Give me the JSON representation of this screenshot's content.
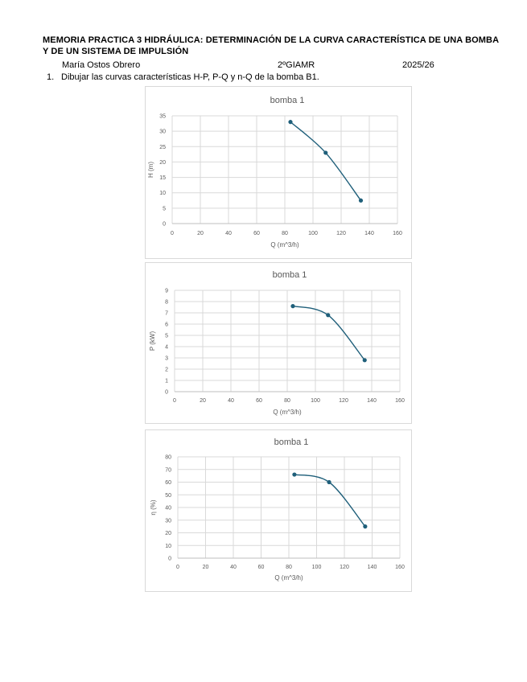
{
  "header": {
    "title": "MEMORIA PRACTICA 3 HIDRÁULICA: DETERMINACIÓN DE LA CURVA CARACTERÍSTICA DE UNA BOMBA Y DE UN SISTEMA DE IMPULSIÓN",
    "author": "María Ostos Obrero",
    "course": "2ºGIAMR",
    "year": "2025/26"
  },
  "question": {
    "number": "1.",
    "text": "Dibujar las curvas características H-P, P-Q y n-Q de la bomba B1."
  },
  "colors": {
    "series": "#1f5f7a",
    "grid": "#d9d9d9",
    "text": "#595959"
  },
  "chart_data": [
    {
      "type": "scatter",
      "title": "bomba 1",
      "xlabel": "Q (m^3/h)",
      "ylabel": "H (m)",
      "xlim": [
        0,
        160
      ],
      "ylim": [
        0,
        35
      ],
      "xticks": [
        0,
        20,
        40,
        60,
        80,
        100,
        120,
        140,
        160
      ],
      "yticks": [
        0,
        5,
        10,
        15,
        20,
        25,
        30,
        35
      ],
      "grid": true,
      "series": [
        {
          "x": [
            84,
            109,
            134
          ],
          "y": [
            33,
            23,
            7.5
          ]
        }
      ]
    },
    {
      "type": "scatter",
      "title": "bomba 1",
      "xlabel": "Q (m^3/h)",
      "ylabel": "P (kW)",
      "xlim": [
        0,
        160
      ],
      "ylim": [
        0,
        9
      ],
      "xticks": [
        0,
        20,
        40,
        60,
        80,
        100,
        120,
        140,
        160
      ],
      "yticks": [
        0,
        1,
        2,
        3,
        4,
        5,
        6,
        7,
        8,
        9
      ],
      "grid": true,
      "series": [
        {
          "x": [
            84,
            109,
            135
          ],
          "y": [
            7.6,
            6.8,
            2.8
          ]
        }
      ]
    },
    {
      "type": "scatter",
      "title": "bomba 1",
      "xlabel": "Q (m^3/h)",
      "ylabel": "η (%)",
      "xlim": [
        0,
        160
      ],
      "ylim": [
        0,
        80
      ],
      "xticks": [
        0,
        20,
        40,
        60,
        80,
        100,
        120,
        140,
        160
      ],
      "yticks": [
        0,
        10,
        20,
        30,
        40,
        50,
        60,
        70,
        80
      ],
      "grid": true,
      "series": [
        {
          "x": [
            84,
            109,
            135
          ],
          "y": [
            66,
            60,
            25
          ]
        }
      ]
    }
  ]
}
